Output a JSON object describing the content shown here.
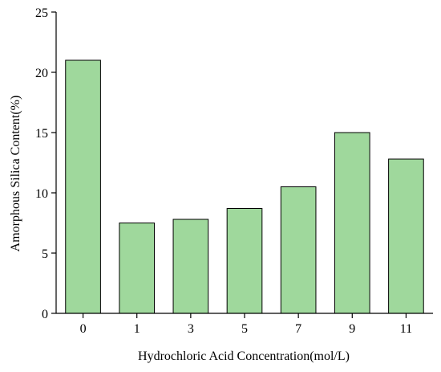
{
  "chart_data": {
    "type": "bar",
    "categories": [
      "0",
      "1",
      "3",
      "5",
      "7",
      "9",
      "11"
    ],
    "values": [
      21.0,
      7.5,
      7.8,
      8.7,
      10.5,
      15.0,
      12.8
    ],
    "title": "",
    "xlabel": "Hydrochloric Acid Concentration(mol/L)",
    "ylabel": "Amorphous Silica Content(%)",
    "ylim": [
      0,
      25
    ],
    "yticks": [
      0,
      5,
      10,
      15,
      20,
      25
    ],
    "grid": false,
    "bar_color": "#9fd89c",
    "bar_edge_color": "#000000"
  }
}
